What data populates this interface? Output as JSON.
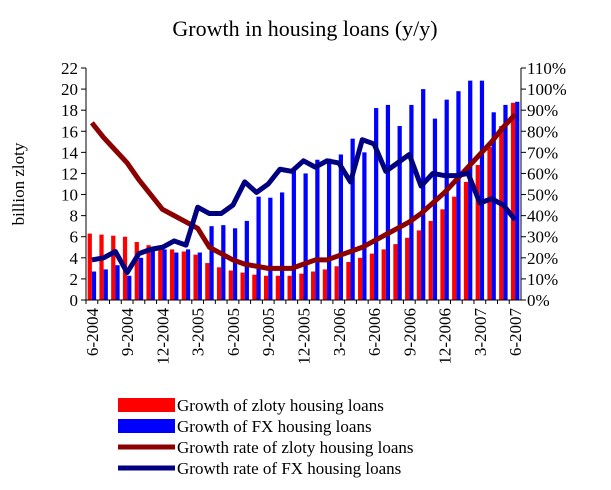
{
  "chart_data": {
    "type": "combo",
    "title": "Growth in housing loans (y/y)",
    "y_label": "billion  zloty",
    "categories": [
      "6-2004",
      null,
      null,
      "9-2004",
      null,
      null,
      "12-2004",
      null,
      null,
      "3-2005",
      null,
      null,
      "6-2005",
      null,
      null,
      "9-2005",
      null,
      null,
      "12-2005",
      null,
      null,
      "3-2006",
      null,
      null,
      "6-2006",
      null,
      null,
      "9-2006",
      null,
      null,
      "12-2006",
      null,
      null,
      "3-2007",
      null,
      null,
      "6-2007"
    ],
    "ylim": [
      0,
      22
    ],
    "yticks": [
      0,
      2,
      4,
      6,
      8,
      10,
      12,
      14,
      16,
      18,
      20,
      22
    ],
    "y2lim": [
      0,
      110
    ],
    "y2ticks": [
      {
        "value": 0,
        "label": "0%"
      },
      {
        "value": 10,
        "label": "10%"
      },
      {
        "value": 20,
        "label": "20%"
      },
      {
        "value": 30,
        "label": "30%"
      },
      {
        "value": 40,
        "label": "40%"
      },
      {
        "value": 50,
        "label": "50%"
      },
      {
        "value": 60,
        "label": "60%"
      },
      {
        "value": 70,
        "label": "70%"
      },
      {
        "value": 80,
        "label": "80%"
      },
      {
        "value": 90,
        "label": "90%"
      },
      {
        "value": 100,
        "label": "100%"
      },
      {
        "value": 110,
        "label": "110%"
      }
    ],
    "series": [
      {
        "name": "Growth of zloty housing loans",
        "type": "bar",
        "color": "#ff0000",
        "values": [
          6.3,
          6.2,
          6.1,
          6.0,
          5.5,
          5.2,
          5.0,
          4.8,
          4.6,
          4.3,
          3.5,
          3.1,
          2.8,
          2.6,
          2.4,
          2.3,
          2.3,
          2.3,
          2.5,
          2.7,
          2.9,
          3.2,
          3.6,
          4.0,
          4.4,
          4.8,
          5.3,
          5.9,
          6.6,
          7.5,
          8.6,
          9.8,
          11.2,
          12.8,
          14.5,
          16.5,
          18.7
        ]
      },
      {
        "name": "Growth of FX housing loans",
        "type": "bar",
        "color": "#0000ff",
        "values": [
          2.7,
          2.9,
          3.3,
          2.3,
          4.0,
          5.0,
          4.8,
          4.5,
          4.8,
          4.5,
          7.0,
          7.1,
          6.8,
          7.5,
          9.8,
          9.7,
          10.2,
          12.3,
          12.0,
          13.3,
          13.4,
          13.8,
          15.3,
          14.0,
          18.2,
          18.5,
          16.5,
          18.5,
          20.0,
          17.2,
          19.0,
          19.8,
          20.8,
          20.8,
          17.8,
          18.5,
          18.8
        ]
      },
      {
        "name": "Growth rate of zloty housing loans",
        "type": "line",
        "axis": "y2",
        "color": "#8b0000",
        "values": [
          84,
          77,
          71,
          65,
          57,
          50,
          43,
          40,
          37,
          34,
          25,
          22,
          19,
          17,
          16,
          15,
          15,
          15,
          17,
          19,
          19,
          21,
          23,
          25,
          28,
          31,
          34,
          37,
          41,
          46,
          51,
          57,
          63,
          69,
          75,
          82,
          88
        ]
      },
      {
        "name": "Growth rate of FX housing loans",
        "type": "line",
        "axis": "y2",
        "color": "#000080",
        "values": [
          19,
          20,
          23,
          13,
          22,
          24,
          25,
          28,
          26,
          44,
          41,
          41,
          45,
          56,
          51,
          55,
          62,
          61,
          66,
          63,
          66,
          65,
          56,
          76,
          74,
          61,
          65,
          69,
          54,
          60,
          59,
          59,
          60,
          46,
          48,
          45,
          38
        ]
      }
    ]
  }
}
